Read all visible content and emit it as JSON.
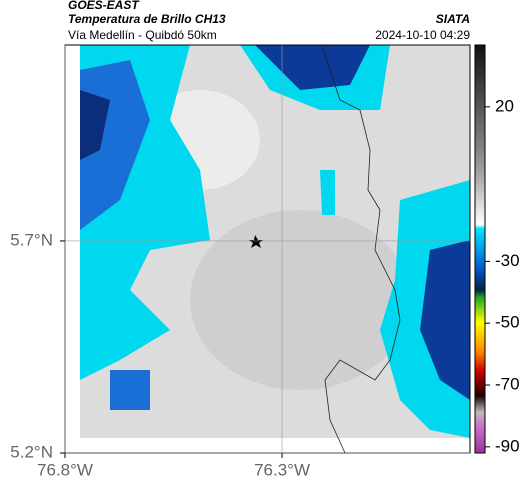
{
  "header": {
    "product": "GOES-EAST",
    "title": "Temperatura de Brillo CH13",
    "source": "SIATA",
    "subtitle": "Vía Medellín - Quibdó 50km",
    "datetime": "2024-10-10 04:29"
  },
  "map": {
    "xlim": [
      -76.8,
      -75.867
    ],
    "ylim": [
      5.2,
      6.162
    ],
    "xticks": [
      {
        "value": -76.8,
        "label": "76.8°W"
      },
      {
        "value": -76.3,
        "label": "76.3°W"
      }
    ],
    "yticks": [
      {
        "value": 5.2,
        "label": "5.2°N"
      },
      {
        "value": 5.7,
        "label": "5.7°N"
      }
    ],
    "grid": true
  },
  "colorbar": {
    "lim": [
      40,
      -92
    ],
    "ticks": [
      20,
      -30,
      -50,
      -70,
      -90
    ]
  }
}
